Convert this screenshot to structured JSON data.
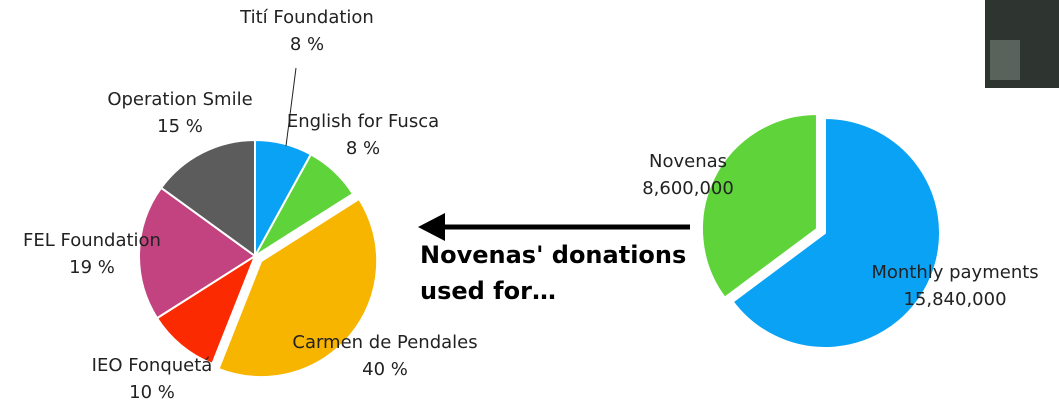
{
  "chart_data": [
    {
      "type": "pie",
      "categories": [
        "Tití Foundation",
        "English for Fusca",
        "Carmen de Pendales",
        "IEO Fonquetá",
        "FEL Foundation",
        "Operation Smile"
      ],
      "values": [
        8,
        8,
        40,
        10,
        19,
        15
      ],
      "value_labels": [
        "8 %",
        "8 %",
        "40 %",
        "10 %",
        "19 %",
        "15 %"
      ],
      "colors": [
        "#0aa2f5",
        "#5fd43a",
        "#f7b500",
        "#fc2a00",
        "#c2437f",
        "#5c5c5c"
      ]
    },
    {
      "type": "pie",
      "categories": [
        "Monthly payments",
        "Novenas"
      ],
      "values": [
        15840000,
        8600000
      ],
      "value_labels": [
        "15,840,000",
        "8,600,000"
      ],
      "colors": [
        "#0aa2f5",
        "#5fd43a"
      ],
      "annotation": [
        "Novenas' donations",
        "used for…"
      ]
    }
  ]
}
